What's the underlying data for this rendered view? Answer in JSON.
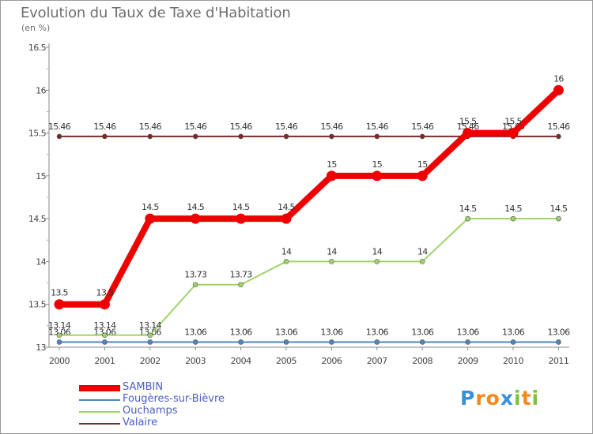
{
  "chart_data": {
    "type": "line",
    "title": "Evolution du Taux de Taxe d'Habitation",
    "subtitle": "(en %)",
    "xlabel": "",
    "ylabel": "",
    "x": [
      "2000",
      "2001",
      "2002",
      "2003",
      "2004",
      "2005",
      "2006",
      "2007",
      "2008",
      "2009",
      "2010",
      "2011"
    ],
    "ylim": [
      13,
      16.5
    ],
    "yticks": [
      "13",
      "13.5",
      "14",
      "14.5",
      "15",
      "15.5",
      "16",
      "16.5"
    ],
    "series": [
      {
        "name": "Valaire",
        "color": "#7a2a2a",
        "values": [
          15.46,
          15.46,
          15.46,
          15.46,
          15.46,
          15.46,
          15.46,
          15.46,
          15.46,
          15.46,
          15.46,
          15.46
        ],
        "labels": [
          "15.46",
          "15.46",
          "15.46",
          "15.46",
          "15.46",
          "15.46",
          "15.46",
          "15.46",
          "15.46",
          "15.46",
          "15.46",
          "15.46"
        ]
      },
      {
        "name": "Fougères-sur-Bièvre",
        "color": "#4f86c0",
        "values": [
          13.06,
          13.06,
          13.06,
          13.06,
          13.06,
          13.06,
          13.06,
          13.06,
          13.06,
          13.06,
          13.06,
          13.06
        ],
        "labels": [
          "13.06",
          "13.06",
          "13.06",
          "13.06",
          "13.06",
          "13.06",
          "13.06",
          "13.06",
          "13.06",
          "13.06",
          "13.06",
          "13.06"
        ]
      },
      {
        "name": "Ouchamps",
        "color": "#9ed46a",
        "values": [
          13.14,
          13.14,
          13.14,
          13.73,
          13.73,
          14,
          14,
          14,
          14,
          14.5,
          14.5,
          14.5
        ],
        "labels": [
          "13.14",
          "13.14",
          "13.14",
          "13.73",
          "13.73",
          "14",
          "14",
          "14",
          "14",
          "14.5",
          "14.5",
          "14.5"
        ]
      },
      {
        "name": "SAMBIN",
        "color": "#ee0000",
        "values": [
          13.5,
          13.5,
          14.5,
          14.5,
          14.5,
          14.5,
          15,
          15,
          15,
          15.5,
          15.5,
          16
        ],
        "labels": [
          "13.5",
          "13.5",
          "14.5",
          "14.5",
          "14.5",
          "14.5",
          "15",
          "15",
          "15",
          "15.5",
          "15.5",
          "16"
        ]
      }
    ],
    "legend": [
      {
        "name": "SAMBIN",
        "color": "#ee0000"
      },
      {
        "name": "Fougères-sur-Bièvre",
        "color": "#4f86c0"
      },
      {
        "name": "Ouchamps",
        "color": "#9ed46a"
      },
      {
        "name": "Valaire",
        "color": "#7a2a2a"
      }
    ],
    "legend_position": "bottom-left"
  },
  "logo": {
    "letters": [
      "P",
      "r",
      "o",
      "x",
      "i",
      "t",
      "i"
    ],
    "colors": [
      "#3b8fd6",
      "#f28a1c",
      "#f28a1c",
      "#3b8fd6",
      "#7cc142",
      "#f28a1c",
      "#7cc142"
    ]
  }
}
